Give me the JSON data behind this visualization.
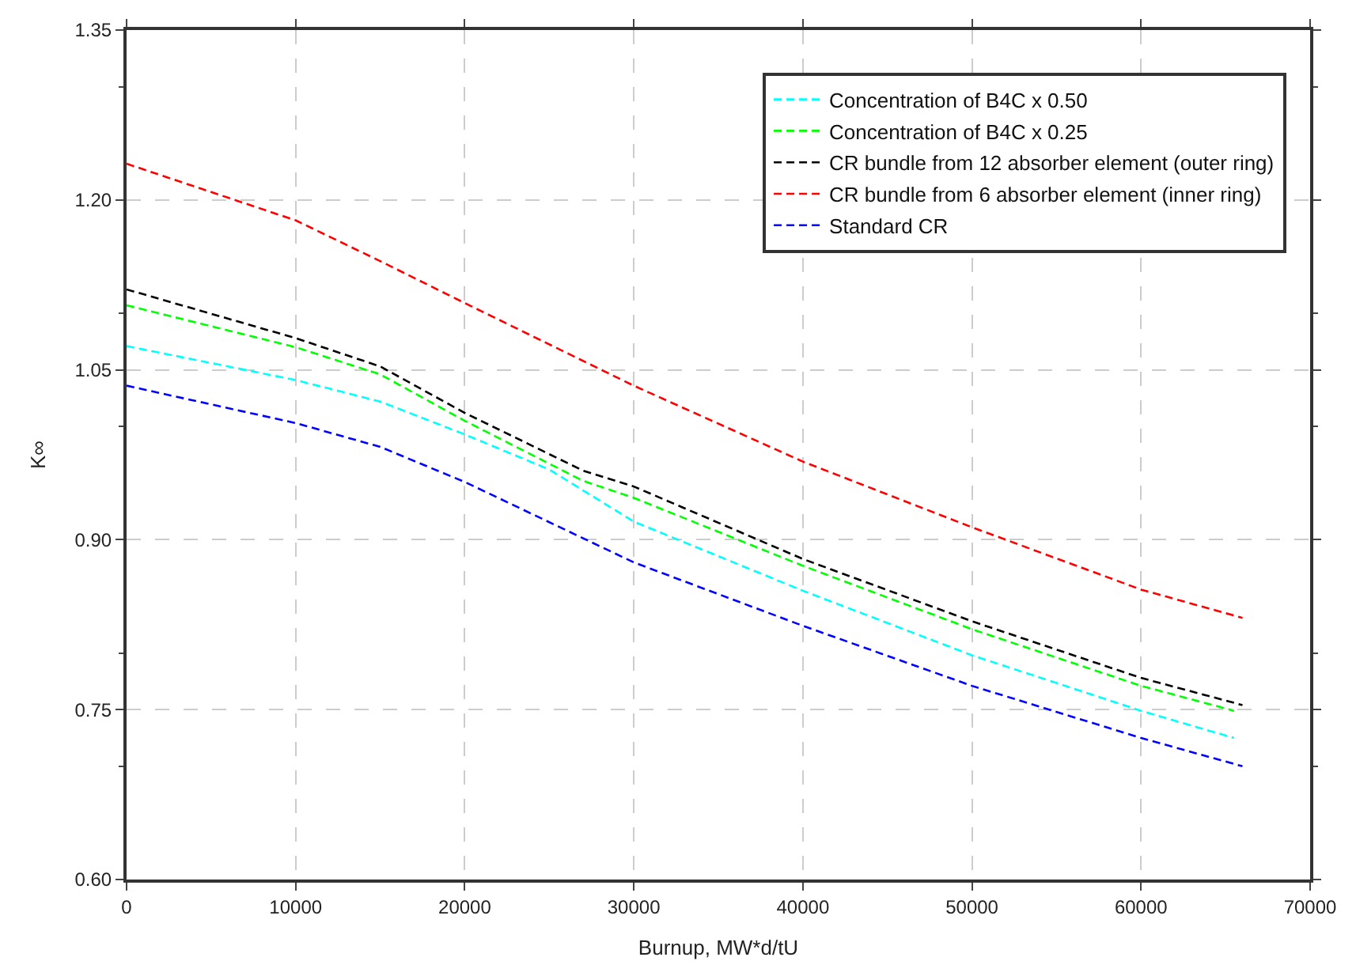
{
  "chart_data": {
    "type": "line",
    "xlabel": "Burnup, MW*d/tU",
    "ylabel": "K∞",
    "xlim": [
      0,
      70000
    ],
    "xticks": [
      0,
      10000,
      20000,
      30000,
      40000,
      50000,
      60000,
      70000
    ],
    "ylim": [
      0.6,
      1.35
    ],
    "yticks": [
      {
        "value": 0.6,
        "label": "0.60"
      },
      {
        "value": 0.75,
        "label": "0.75"
      },
      {
        "value": 0.9,
        "label": "0.90"
      },
      {
        "value": 1.05,
        "label": "1.05"
      },
      {
        "value": 1.2,
        "label": "1.20"
      },
      {
        "value": 1.35,
        "label": "1.35"
      }
    ],
    "grid": true,
    "legend": "top right",
    "marker": "none",
    "line_style": "dashed",
    "series": [
      {
        "name": "Concentration of B4C x 0.50",
        "color": "#00ffff",
        "x": [
          0,
          10000,
          15000,
          20000,
          25000,
          30000,
          40000,
          50000,
          60000,
          65500
        ],
        "values": [
          1.071,
          1.041,
          1.022,
          0.993,
          0.962,
          0.916,
          0.855,
          0.798,
          0.749,
          0.725
        ]
      },
      {
        "name": "Concentration of B4C x 0.25",
        "color": "#00ff00",
        "x": [
          0,
          10000,
          15000,
          20000,
          27000,
          30000,
          40000,
          50000,
          60000,
          65500
        ],
        "values": [
          1.107,
          1.07,
          1.046,
          1.005,
          0.952,
          0.937,
          0.877,
          0.821,
          0.771,
          0.749
        ]
      },
      {
        "name": "CR bundle from 12 absorber element (outer ring)",
        "color": "#000000",
        "x": [
          0,
          10000,
          15000,
          20000,
          27000,
          30000,
          40000,
          50000,
          60000,
          66000
        ],
        "values": [
          1.121,
          1.078,
          1.053,
          1.012,
          0.961,
          0.947,
          0.883,
          0.828,
          0.778,
          0.754
        ]
      },
      {
        "name": "CR bundle from 6 absorber element (inner ring)",
        "color": "#ff0000",
        "x": [
          0,
          10000,
          15000,
          20000,
          30000,
          40000,
          50000,
          60000,
          66000
        ],
        "values": [
          1.232,
          1.182,
          1.146,
          1.109,
          1.036,
          0.969,
          0.911,
          0.856,
          0.831
        ]
      },
      {
        "name": "Standard CR",
        "color": "#0000ff",
        "x": [
          0,
          10000,
          15000,
          20000,
          30000,
          40000,
          50000,
          60000,
          66000
        ],
        "values": [
          1.036,
          1.003,
          0.982,
          0.951,
          0.88,
          0.824,
          0.771,
          0.725,
          0.7
        ]
      }
    ]
  }
}
